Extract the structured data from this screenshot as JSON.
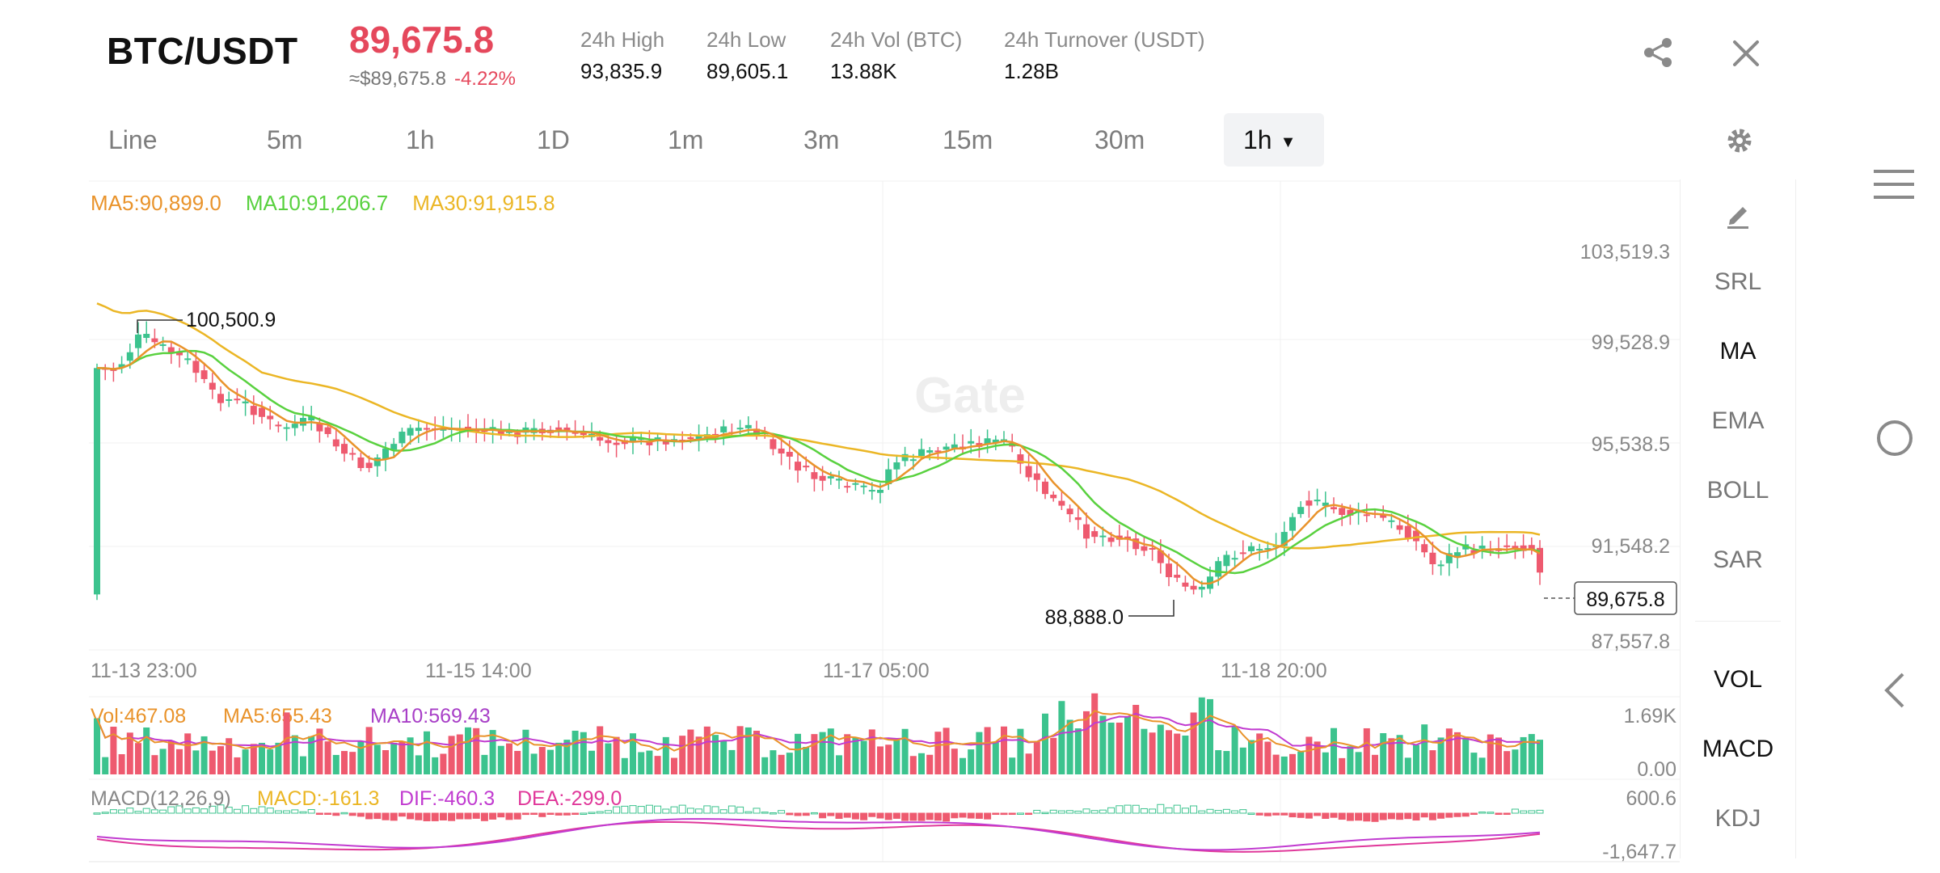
{
  "header": {
    "pair": "BTC/USDT",
    "price": "89,675.8",
    "approx_price": "≈$89,675.8",
    "change": "-4.22%",
    "stats": [
      {
        "label": "24h High",
        "value": "93,835.9"
      },
      {
        "label": "24h Low",
        "value": "89,605.1"
      },
      {
        "label": "24h Vol (BTC)",
        "value": "13.88K"
      },
      {
        "label": "24h Turnover (USDT)",
        "value": "1.28B"
      }
    ]
  },
  "icons": {
    "share": "share-icon",
    "close": "close-icon",
    "settings": "gear-icon",
    "draw": "pencil-icon"
  },
  "tabs": [
    "Line",
    "5m",
    "1h",
    "1D",
    "1m",
    "3m",
    "15m",
    "30m",
    "1h"
  ],
  "active_tab_index": 8,
  "ma_legend": {
    "ma5": "MA5:90,899.0",
    "ma10": "MA10:91,206.7",
    "ma30": "MA30:91,915.8"
  },
  "side_panel": {
    "items": [
      "SRL",
      "MA",
      "EMA",
      "BOLL",
      "SAR"
    ],
    "active": "MA",
    "sub_items": [
      "VOL",
      "MACD",
      "KDJ"
    ]
  },
  "watermark": "Gate",
  "colors": {
    "up": "#3cc38e",
    "down": "#ee5a6f",
    "ma5": "#e9932b",
    "ma10": "#59d13f",
    "ma30": "#ebb625",
    "dif": "#c13bd0",
    "dea": "#e0389a"
  },
  "chart_data": [
    {
      "type": "candlestick",
      "x_labels": [
        "11-13 23:00",
        "11-15 14:00",
        "11-17 05:00",
        "11-18 20:00"
      ],
      "y_ticks": [
        "103,519.3",
        "99,528.9",
        "95,538.5",
        "91,548.2",
        "87,557.8"
      ],
      "ylim": [
        87557.8,
        103519.3
      ],
      "last_price": "89,675.8",
      "high_marker": "100,500.9",
      "low_marker": "88,888.0",
      "series": [
        {
          "name": "MA5:90,899.0"
        },
        {
          "name": "MA10:91,206.7"
        },
        {
          "name": "MA30:91,915.8"
        }
      ]
    },
    {
      "type": "bar",
      "legend": {
        "vol": "Vol:467.08",
        "ma5": "MA5:655.43",
        "ma10": "MA10:569.43"
      },
      "y_ticks": [
        "1.69K",
        "0.00"
      ],
      "ylim": [
        0,
        1690
      ]
    },
    {
      "type": "bar",
      "legend": {
        "title": "MACD(12,26,9)",
        "macd": "MACD:-161.3",
        "dif": "DIF:-460.3",
        "dea": "DEA:-299.0"
      },
      "y_ticks": [
        "600.6",
        "-1,647.7"
      ],
      "ylim": [
        -1647.7,
        600.6
      ]
    }
  ]
}
